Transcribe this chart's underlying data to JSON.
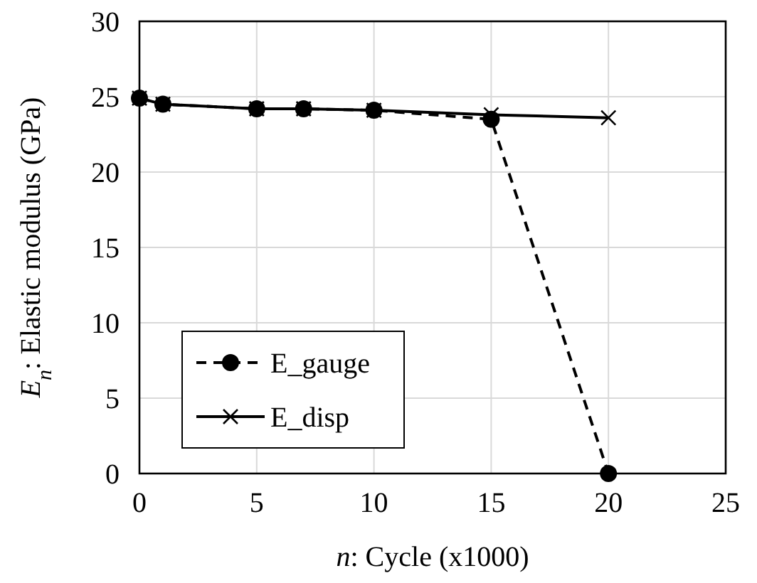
{
  "chart_data": {
    "type": "line",
    "xlabel": "n: Cycle (x1000)",
    "ylabel": "E$_{n}$: Elastic modulus (GPa)",
    "x": [
      0,
      1,
      5,
      7,
      10,
      15,
      20
    ],
    "series": [
      {
        "name": "E_gauge",
        "color": "#000000",
        "values": [
          24.9,
          24.5,
          24.2,
          24.2,
          24.1,
          23.5,
          0
        ],
        "marker": "circle",
        "line_style": "dashed"
      },
      {
        "name": "E_disp",
        "color": "#000000",
        "values": [
          24.9,
          24.5,
          24.2,
          24.2,
          24.1,
          23.8,
          23.6
        ],
        "marker": "cross",
        "line_style": "solid"
      }
    ],
    "xlim": [
      0,
      25
    ],
    "xticks": [
      0,
      5,
      10,
      15,
      20,
      25
    ],
    "ylim": [
      0,
      30
    ],
    "yticks": [
      0,
      5,
      10,
      15,
      20,
      25,
      30
    ],
    "grid": true,
    "legend": "bottom left"
  }
}
